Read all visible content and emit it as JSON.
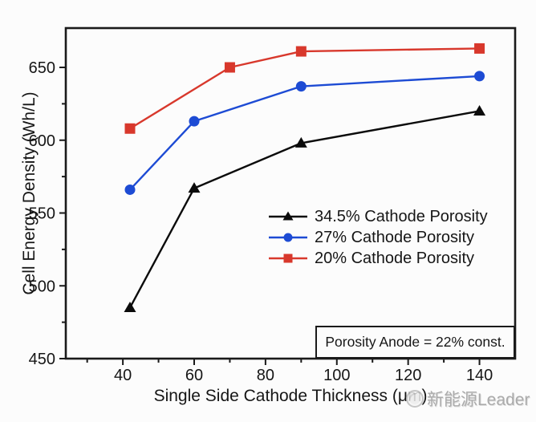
{
  "chart_data": {
    "type": "line",
    "title": "",
    "xlabel": "Single Side Cathode Thickness (μm)",
    "ylabel": "Cell Energy Density (Wh/L)",
    "xlim": [
      24,
      150
    ],
    "ylim": [
      450,
      677
    ],
    "x_major_ticks": [
      40,
      60,
      80,
      100,
      120,
      140
    ],
    "x_minor_ticks": [
      30,
      50,
      70,
      90,
      110,
      130
    ],
    "y_major_ticks": [
      450,
      500,
      550,
      600,
      650
    ],
    "y_minor_ticks": [
      475,
      525,
      575,
      625
    ],
    "grid": false,
    "legend_position": "inside center-right",
    "annotation": "Porosity Anode = 22% const.",
    "axis_color": "#1a1a1a",
    "series": [
      {
        "name": "34.5% Cathode Porosity",
        "marker": "triangle",
        "color": "#0b0b0b",
        "x": [
          42,
          60,
          90,
          140
        ],
        "y": [
          485,
          567,
          598,
          620
        ]
      },
      {
        "name": "27% Cathode Porosity",
        "marker": "circle",
        "color": "#1d4bd4",
        "x": [
          42,
          60,
          90,
          140
        ],
        "y": [
          566,
          613,
          637,
          644
        ]
      },
      {
        "name": "20% Cathode Porosity",
        "marker": "square",
        "color": "#d8382c",
        "x": [
          42,
          70,
          90,
          140
        ],
        "y": [
          608,
          650,
          661,
          663
        ]
      }
    ]
  },
  "watermark": {
    "text": "新能源Leader",
    "logo": "circle-logo"
  }
}
